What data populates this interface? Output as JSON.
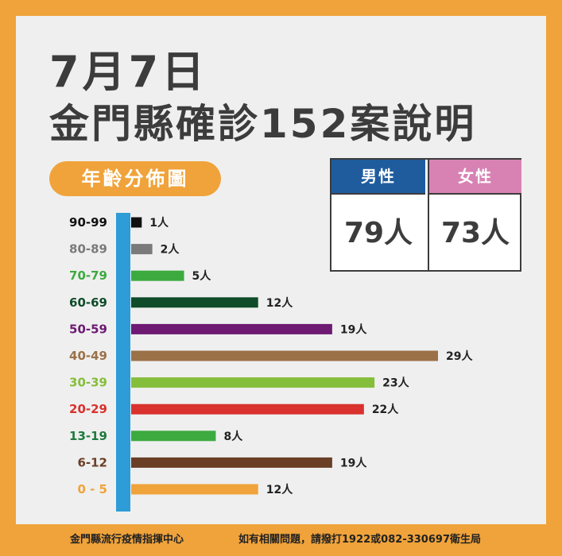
{
  "title": {
    "line1": "7月7日",
    "line2": "金門縣確診152案說明"
  },
  "section_label": "年齡分佈圖",
  "gender": {
    "male": {
      "label": "男性",
      "value": "79人",
      "color": "#1F5C9E"
    },
    "female": {
      "label": "女性",
      "value": "73人",
      "color": "#D882B4"
    }
  },
  "chart_data": {
    "type": "bar",
    "orientation": "horizontal",
    "categories": [
      "90-99",
      "80-89",
      "70-79",
      "60-69",
      "50-59",
      "40-49",
      "30-39",
      "20-29",
      "13-19",
      "6-12",
      "0 - 5"
    ],
    "values": [
      1,
      2,
      5,
      12,
      19,
      29,
      23,
      22,
      8,
      19,
      12
    ],
    "value_labels": [
      "1人",
      "2人",
      "5人",
      "12人",
      "19人",
      "29人",
      "23人",
      "22人",
      "8人",
      "19人",
      "12人"
    ],
    "colors": [
      "#111111",
      "#7A7A7A",
      "#3DAA3F",
      "#0F4C2A",
      "#6E1A73",
      "#9B7148",
      "#85BE3A",
      "#D9312E",
      "#3DAA3F",
      "#6B3F26",
      "#F0A33A"
    ],
    "label_colors": [
      "#111111",
      "#7A7A7A",
      "#3DAA3F",
      "#0F4C2A",
      "#6E1A73",
      "#9B7148",
      "#85BE3A",
      "#D9312E",
      "#1E7A3C",
      "#6B3F26",
      "#F0A33A"
    ],
    "axis_color": "#2E9CD6",
    "xlim": [
      0,
      29
    ]
  },
  "footer": {
    "left": "金門縣流行疫情指揮中心",
    "right": "如有相關問題，請撥打1922或082-330697衛生局"
  }
}
